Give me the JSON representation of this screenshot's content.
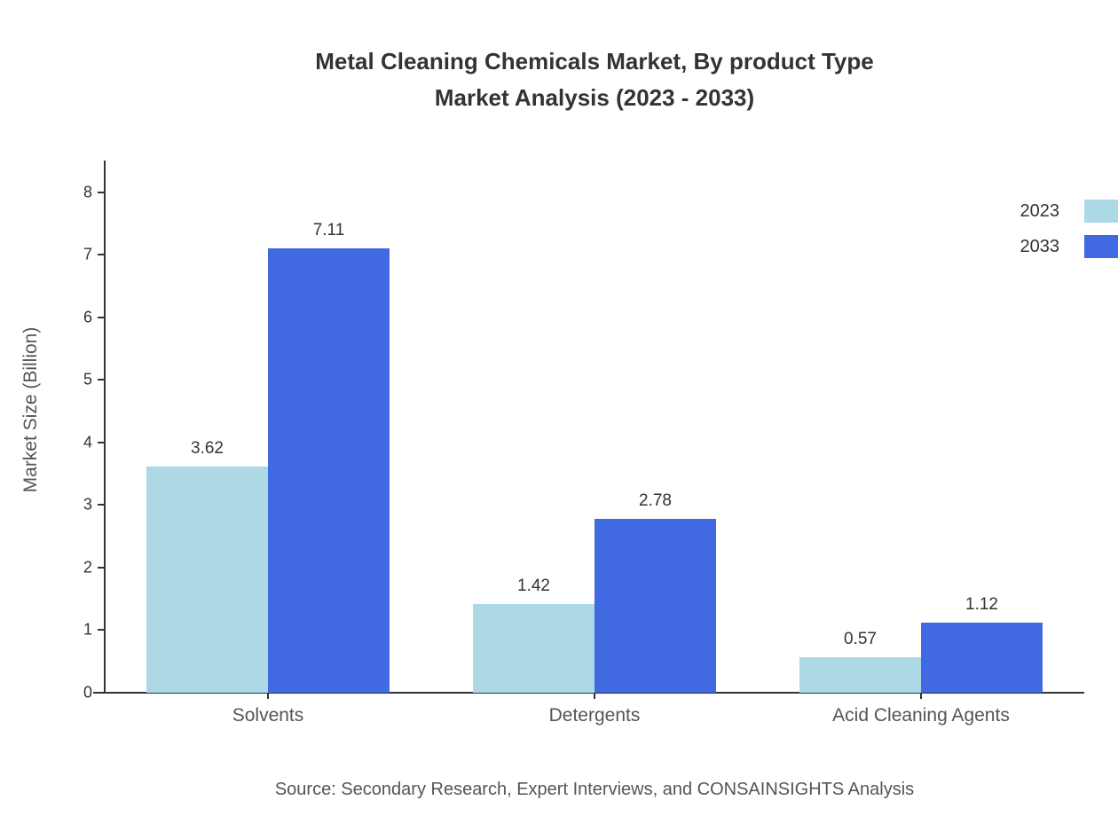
{
  "title": {
    "line1": "Metal Cleaning Chemicals Market, By product Type",
    "line2": "Market Analysis (2023 - 2033)"
  },
  "source": "Source: Secondary Research, Expert Interviews, and CONSAINSIGHTS Analysis",
  "chart_data": {
    "type": "bar",
    "title": "Metal Cleaning Chemicals Market, By product Type Market Analysis (2023 - 2033)",
    "categories": [
      "Solvents",
      "Detergents",
      "Acid Cleaning Agents"
    ],
    "series": [
      {
        "name": "2023",
        "color": "#ADD8E6",
        "values": [
          3.62,
          1.42,
          0.57
        ]
      },
      {
        "name": "2033",
        "color": "#4169E1",
        "values": [
          7.11,
          2.78,
          1.12
        ]
      }
    ],
    "xlabel": "",
    "ylabel": "Market Size (Billion)",
    "yticks": [
      0,
      1,
      2,
      3,
      4,
      5,
      6,
      7,
      8
    ],
    "ylim": [
      0,
      8.51
    ],
    "grid": false,
    "legend_position": "top-right",
    "value_labels": true,
    "axis_color": "#333333"
  }
}
